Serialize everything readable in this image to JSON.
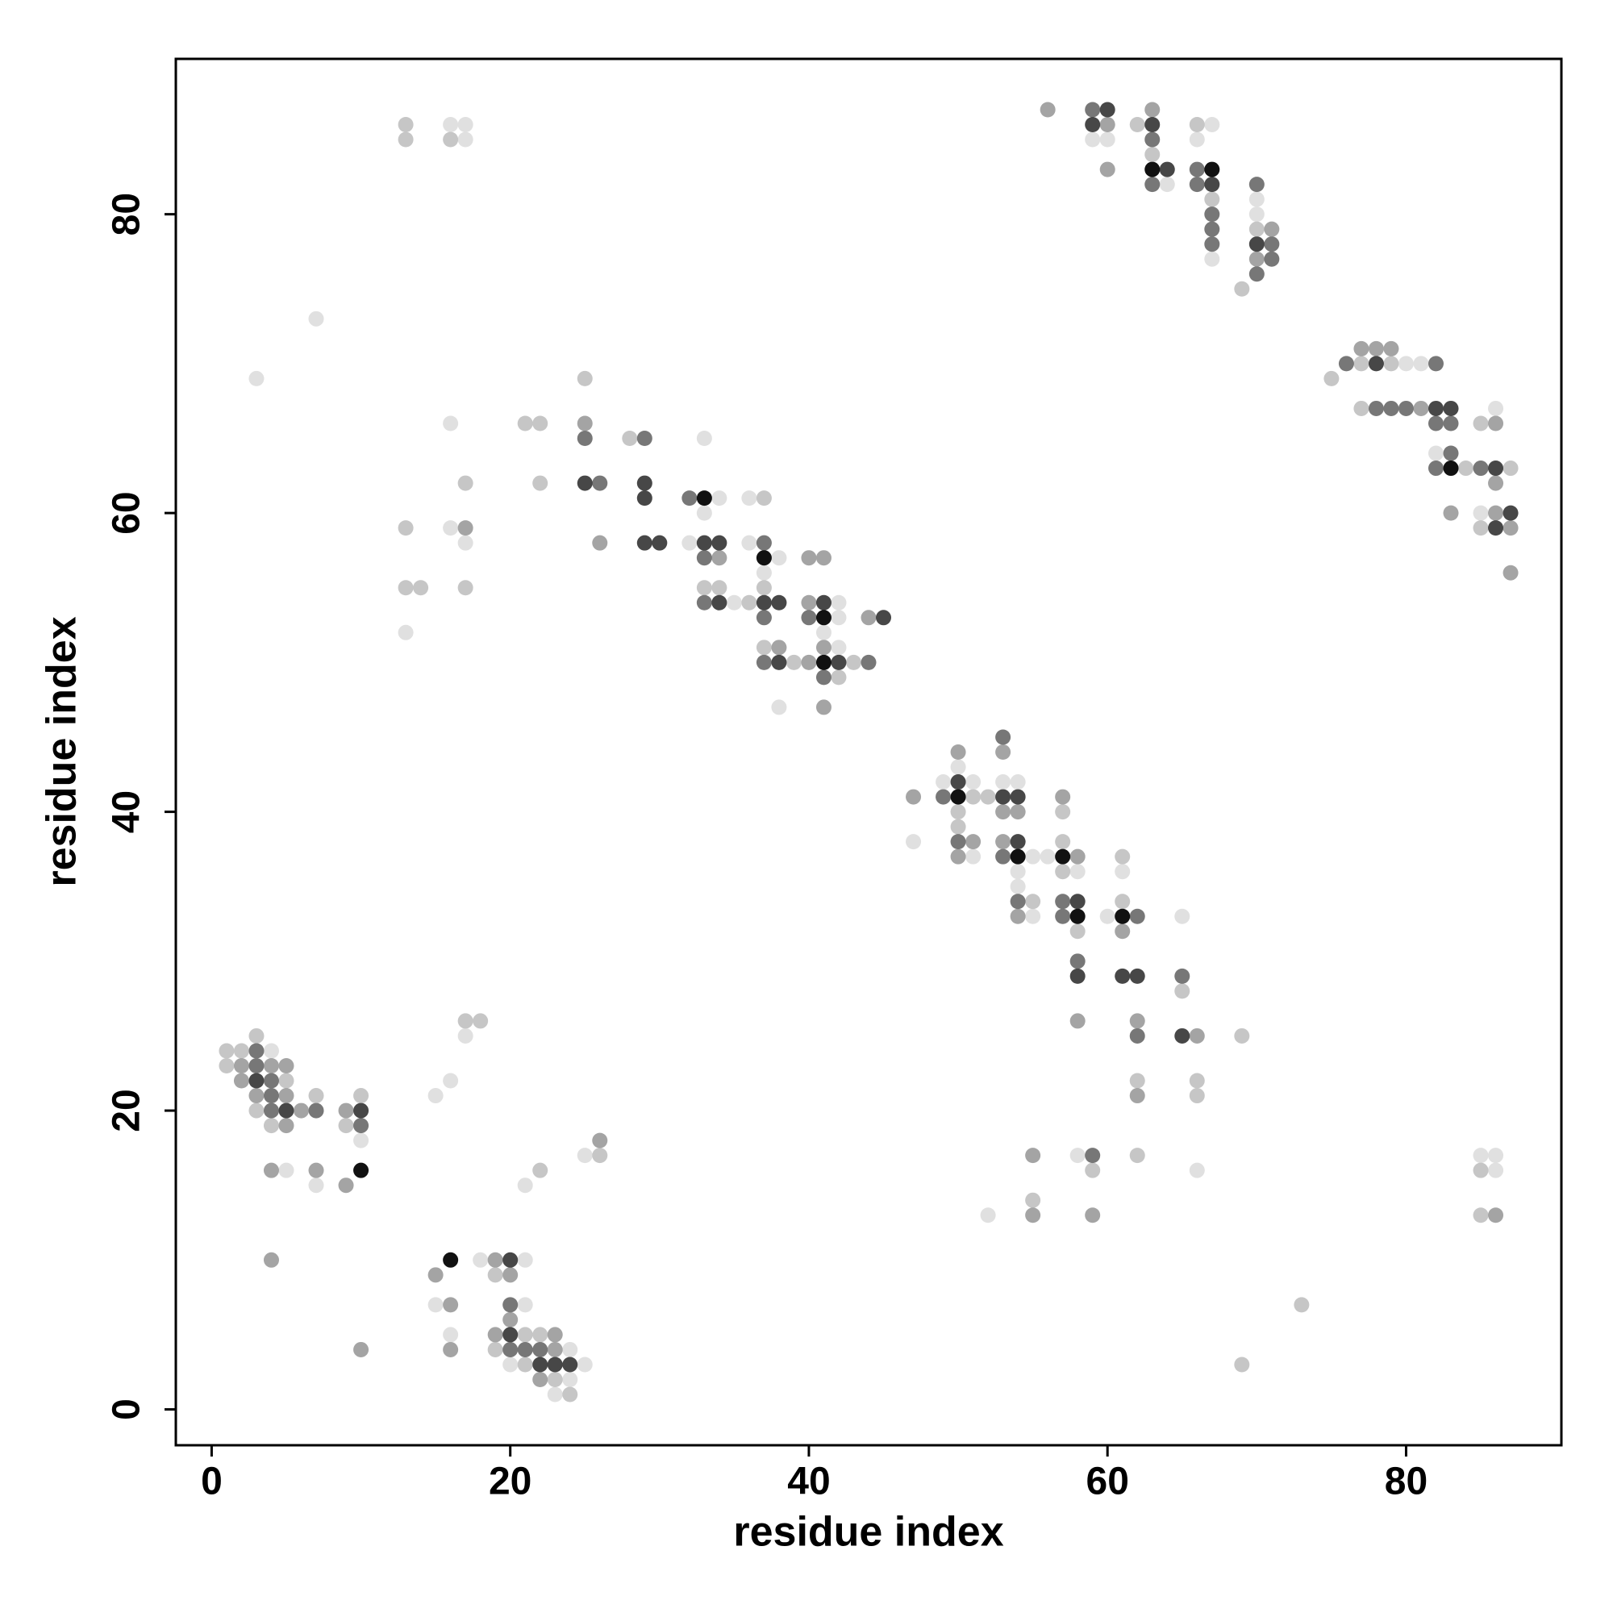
{
  "chart_data": {
    "type": "scatter",
    "xlabel": "residue index",
    "ylabel": "residue index",
    "xlim": [
      -2.4,
      90.4
    ],
    "ylim": [
      -2.4,
      90.4
    ],
    "xticks": [
      0,
      20,
      40,
      60,
      80
    ],
    "yticks": [
      0,
      20,
      40,
      60,
      80
    ],
    "series": [
      {
        "color": "#e0e0e0",
        "x": [
          16,
          17,
          17,
          7,
          3,
          16,
          16,
          17,
          13,
          33,
          34,
          33,
          32,
          35,
          36,
          36,
          38,
          37,
          42,
          42,
          41,
          42,
          38,
          47,
          49,
          50,
          51,
          51,
          53,
          54,
          55,
          56,
          54,
          54,
          55,
          58,
          60,
          61,
          65,
          52,
          58,
          66,
          85,
          86,
          86,
          59,
          60,
          64,
          67,
          66,
          67,
          70,
          70,
          80,
          81,
          82,
          86,
          85,
          4,
          5,
          7,
          10,
          15,
          16,
          17,
          21,
          25,
          18,
          21,
          15,
          21,
          16,
          24,
          20,
          25,
          24,
          23
        ],
        "y": [
          86,
          86,
          85,
          73,
          69,
          66,
          59,
          58,
          52,
          65,
          61,
          60,
          58,
          54,
          61,
          58,
          57,
          56,
          54,
          53,
          52,
          51,
          47,
          38,
          42,
          43,
          42,
          37,
          42,
          42,
          37,
          37,
          36,
          35,
          33,
          36,
          33,
          36,
          33,
          13,
          17,
          16,
          17,
          17,
          16,
          85,
          85,
          82,
          86,
          85,
          77,
          81,
          80,
          70,
          70,
          64,
          67,
          60,
          24,
          16,
          15,
          18,
          21,
          22,
          25,
          15,
          17,
          10,
          10,
          7,
          7,
          5,
          4,
          3,
          3,
          2,
          1
        ]
      },
      {
        "color": "#c6c6c6",
        "x": [
          13,
          13,
          16,
          17,
          13,
          13,
          14,
          17,
          25,
          21,
          22,
          28,
          22,
          33,
          34,
          36,
          37,
          37,
          37,
          39,
          43,
          42,
          51,
          52,
          50,
          50,
          55,
          57,
          57,
          57,
          58,
          61,
          61,
          62,
          65,
          66,
          66,
          69,
          55,
          59,
          62,
          73,
          69,
          85,
          85,
          62,
          63,
          66,
          67,
          70,
          69,
          75,
          77,
          79,
          77,
          84,
          87,
          85,
          85,
          1,
          2,
          3,
          1,
          5,
          3,
          7,
          4,
          10,
          9,
          17,
          18,
          22,
          26,
          19,
          21,
          22,
          19,
          21,
          23,
          24
        ],
        "y": [
          86,
          85,
          85,
          62,
          59,
          55,
          55,
          55,
          69,
          66,
          66,
          65,
          62,
          55,
          55,
          54,
          61,
          55,
          51,
          50,
          50,
          49,
          41,
          41,
          40,
          39,
          34,
          40,
          38,
          36,
          32,
          37,
          34,
          22,
          28,
          22,
          21,
          25,
          14,
          16,
          17,
          7,
          3,
          16,
          13,
          86,
          84,
          86,
          81,
          79,
          75,
          69,
          70,
          70,
          67,
          63,
          63,
          66,
          59,
          24,
          24,
          25,
          23,
          22,
          20,
          21,
          19,
          21,
          19,
          26,
          26,
          16,
          17,
          9,
          5,
          5,
          4,
          3,
          2,
          1
        ]
      },
      {
        "color": "#a4a4a4",
        "x": [
          17,
          25,
          26,
          34,
          38,
          40,
          40,
          41,
          40,
          41,
          41,
          44,
          47,
          50,
          51,
          50,
          53,
          53,
          54,
          53,
          54,
          57,
          58,
          58,
          61,
          62,
          62,
          66,
          55,
          55,
          59,
          86,
          56,
          60,
          60,
          63,
          71,
          70,
          77,
          78,
          79,
          81,
          86,
          86,
          83,
          86,
          87,
          87,
          2,
          4,
          5,
          2,
          3,
          5,
          6,
          5,
          9,
          4,
          7,
          9,
          4,
          10,
          26,
          15,
          19,
          20,
          16,
          20,
          16,
          19,
          23,
          23,
          22
        ],
        "y": [
          59,
          66,
          58,
          57,
          51,
          50,
          57,
          57,
          54,
          51,
          47,
          53,
          41,
          44,
          38,
          37,
          44,
          40,
          40,
          38,
          33,
          41,
          37,
          26,
          32,
          26,
          21,
          25,
          17,
          13,
          13,
          13,
          87,
          86,
          83,
          87,
          79,
          77,
          71,
          71,
          71,
          67,
          66,
          62,
          60,
          60,
          59,
          56,
          23,
          23,
          23,
          22,
          21,
          21,
          20,
          19,
          20,
          16,
          16,
          15,
          10,
          4,
          18,
          9,
          10,
          9,
          7,
          6,
          4,
          5,
          5,
          4,
          2
        ]
      },
      {
        "color": "#777777",
        "x": [
          25,
          29,
          26,
          32,
          33,
          33,
          37,
          37,
          37,
          40,
          41,
          44,
          49,
          50,
          53,
          53,
          54,
          57,
          57,
          58,
          62,
          62,
          65,
          59,
          59,
          63,
          63,
          66,
          66,
          67,
          67,
          67,
          70,
          71,
          71,
          70,
          76,
          82,
          78,
          79,
          80,
          82,
          83,
          83,
          82,
          85,
          3,
          3,
          4,
          4,
          4,
          7,
          10,
          20,
          20,
          21,
          22
        ],
        "y": [
          65,
          65,
          62,
          61,
          57,
          54,
          58,
          53,
          50,
          53,
          49,
          50,
          41,
          38,
          45,
          37,
          34,
          34,
          33,
          30,
          33,
          25,
          29,
          17,
          87,
          85,
          82,
          83,
          82,
          80,
          79,
          78,
          82,
          78,
          77,
          76,
          70,
          70,
          67,
          67,
          67,
          66,
          66,
          64,
          63,
          63,
          24,
          23,
          22,
          21,
          20,
          20,
          19,
          7,
          4,
          4,
          4
        ]
      },
      {
        "color": "#474747",
        "x": [
          25,
          29,
          29,
          29,
          30,
          33,
          34,
          34,
          37,
          38,
          38,
          41,
          42,
          45,
          50,
          53,
          54,
          54,
          58,
          58,
          61,
          62,
          65,
          60,
          59,
          63,
          64,
          67,
          70,
          78,
          82,
          83,
          86,
          87,
          86,
          3,
          5,
          10,
          20,
          20,
          22,
          23,
          24
        ],
        "y": [
          62,
          62,
          61,
          58,
          58,
          58,
          58,
          54,
          54,
          54,
          50,
          54,
          50,
          53,
          42,
          41,
          41,
          38,
          34,
          29,
          29,
          29,
          25,
          87,
          86,
          86,
          83,
          82,
          78,
          70,
          67,
          67,
          63,
          60,
          59,
          22,
          20,
          20,
          10,
          5,
          3,
          3,
          3
        ]
      },
      {
        "color": "#111111",
        "x": [
          33,
          37,
          41,
          41,
          50,
          54,
          57,
          58,
          61,
          63,
          67,
          83,
          10,
          16
        ],
        "y": [
          61,
          57,
          53,
          50,
          41,
          37,
          37,
          33,
          33,
          83,
          83,
          63,
          16,
          10
        ]
      }
    ]
  }
}
